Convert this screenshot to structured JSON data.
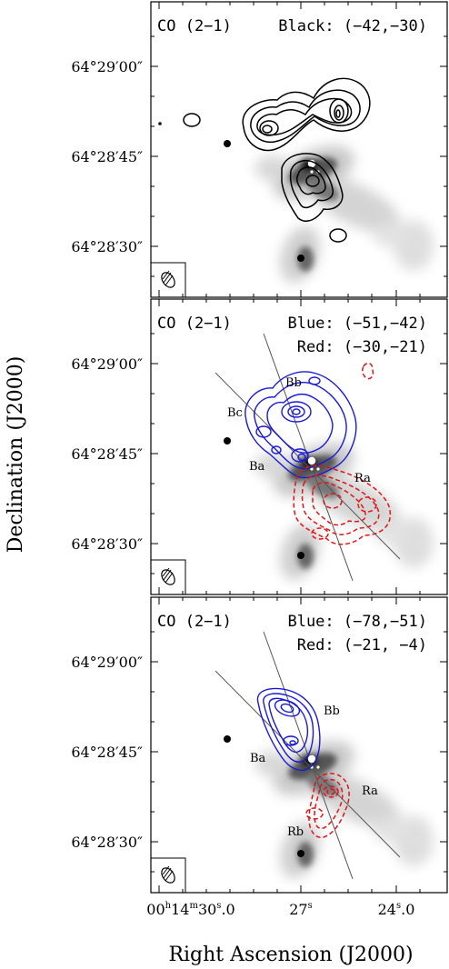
{
  "figure": {
    "xlabel": "Right Ascension (J2000)",
    "ylabel": "Declination (J2000)",
    "y_ticks": [
      "64°29′00″",
      "64°28′45″",
      "64°28′30″"
    ],
    "x_ticks": [
      "00h14m30s.0",
      "27s",
      "24s.0"
    ]
  },
  "colors": {
    "blue": "#1a1ad6",
    "red": "#e01515",
    "black": "#000000",
    "guide": "#555555",
    "grey_map": "#222222"
  },
  "chart_data": [
    {
      "type": "contour",
      "panel_id": "top",
      "line": "CO (2−1)",
      "ranges": [
        {
          "label": "Black: (−42,−30)",
          "color": "black"
        }
      ],
      "source_labels": []
    },
    {
      "type": "contour",
      "panel_id": "middle",
      "line": "CO (2−1)",
      "ranges": [
        {
          "label": "Blue: (−51,−42)",
          "color": "blue"
        },
        {
          "label": "Red: (−30,−21)",
          "color": "red"
        }
      ],
      "source_labels": [
        "Bb",
        "Bc",
        "Ba",
        "Ra"
      ]
    },
    {
      "type": "contour",
      "panel_id": "bottom",
      "line": "CO (2−1)",
      "ranges": [
        {
          "label": "Blue: (−78,−51)",
          "color": "blue"
        },
        {
          "label": "Red: (−21, −4)",
          "color": "red"
        }
      ],
      "source_labels": [
        "Bb",
        "Ba",
        "Ra",
        "Rb"
      ]
    }
  ]
}
